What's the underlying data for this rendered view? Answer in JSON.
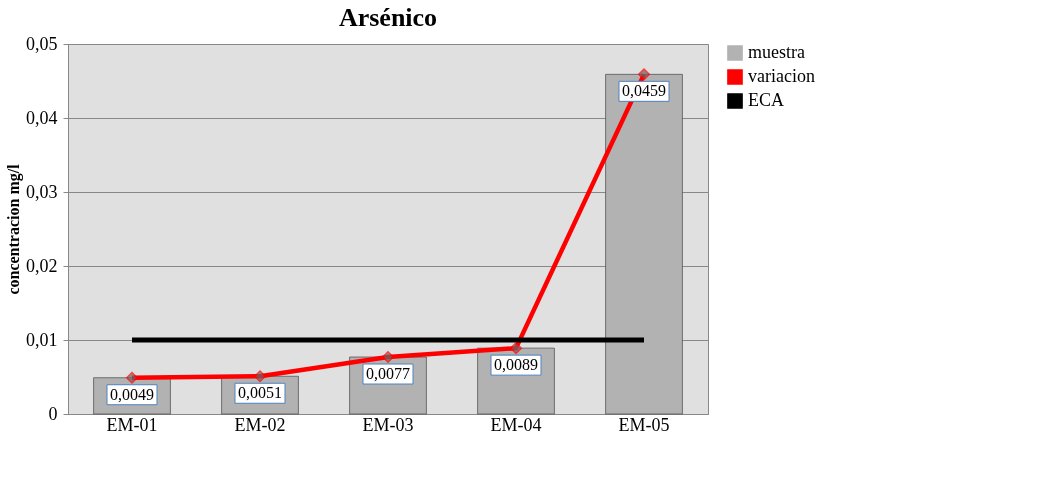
{
  "chart_data": {
    "type": "bar",
    "title": "Arsénico",
    "ylabel": "concentracion mg/l",
    "categories": [
      "EM-01",
      "EM-02",
      "EM-03",
      "EM-04",
      "EM-05"
    ],
    "series": [
      {
        "name": "muestra",
        "color": "#b2b2b2",
        "values": [
          0.0049,
          0.0051,
          0.0077,
          0.0089,
          0.0459
        ]
      },
      {
        "name": "variacion",
        "type": "line",
        "color": "#ff0000",
        "marker": "diamond",
        "values": [
          0.0049,
          0.0051,
          0.0077,
          0.0089,
          0.0459
        ],
        "value_labels": [
          "0,0049",
          "0,0051",
          "0,0077",
          "0,0089",
          "0,0459"
        ]
      },
      {
        "name": "ECA",
        "type": "line",
        "color": "#000000",
        "marker": "none",
        "values": [
          0.01,
          0.01,
          0.01,
          0.01,
          0.01
        ]
      }
    ],
    "ylim": [
      0,
      0.05
    ],
    "yticks": [
      0,
      {
        "value": 0.01,
        "label": "0,01"
      },
      {
        "value": 0.02,
        "label": "0,02"
      },
      {
        "value": 0.03,
        "label": "0,03"
      },
      {
        "value": 0.04,
        "label": "0,04"
      },
      {
        "value": 0.05,
        "label": "0,05"
      }
    ],
    "grid": "y",
    "legend": "right"
  }
}
